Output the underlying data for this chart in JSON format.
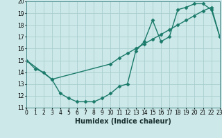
{
  "line1_x": [
    0,
    1,
    2,
    3,
    4,
    5,
    6,
    7,
    8,
    9,
    10,
    11,
    12,
    13,
    14,
    15,
    16,
    17,
    18,
    19,
    20,
    21,
    22,
    23
  ],
  "line1_y": [
    15.0,
    14.3,
    14.0,
    13.4,
    12.2,
    11.8,
    11.5,
    11.5,
    11.5,
    11.8,
    12.2,
    12.8,
    13.0,
    15.8,
    16.6,
    18.4,
    16.6,
    17.0,
    19.3,
    19.5,
    19.8,
    19.8,
    19.3,
    17.0
  ],
  "line2_x": [
    0,
    3,
    10,
    11,
    12,
    13,
    14,
    15,
    16,
    17,
    18,
    19,
    20,
    21,
    22,
    23
  ],
  "line2_y": [
    15.0,
    13.4,
    14.7,
    15.2,
    15.6,
    16.0,
    16.4,
    16.8,
    17.2,
    17.6,
    18.0,
    18.4,
    18.8,
    19.2,
    19.5,
    17.0
  ],
  "line_color": "#1a7a6a",
  "bg_color": "#cce8e8",
  "grid_color": "#aacece",
  "xlabel": "Humidex (Indice chaleur)",
  "xlim": [
    0,
    23
  ],
  "ylim": [
    11,
    20
  ],
  "xticks": [
    0,
    1,
    2,
    3,
    4,
    5,
    6,
    7,
    8,
    9,
    10,
    11,
    12,
    13,
    14,
    15,
    16,
    17,
    18,
    19,
    20,
    21,
    22,
    23
  ],
  "yticks": [
    11,
    12,
    13,
    14,
    15,
    16,
    17,
    18,
    19,
    20
  ],
  "marker": "D",
  "markersize": 2.5,
  "linewidth": 1.0,
  "xlabel_fontsize": 7,
  "tick_fontsize": 5.5
}
